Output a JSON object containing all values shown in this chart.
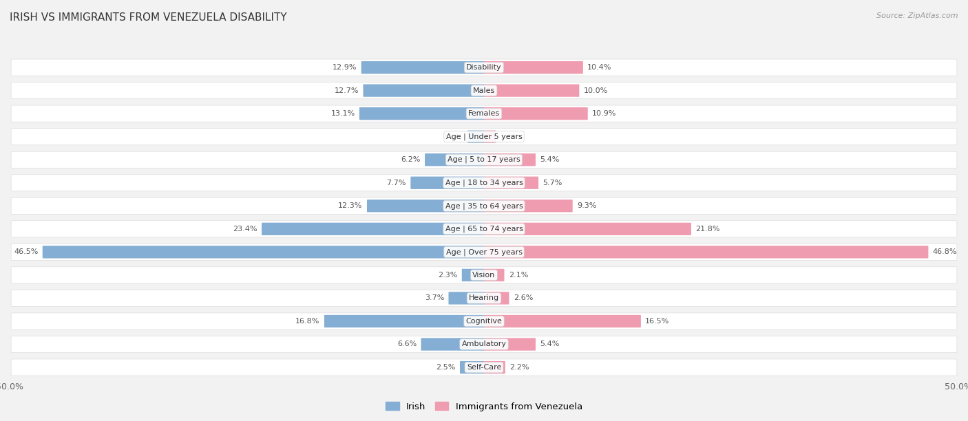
{
  "title": "IRISH VS IMMIGRANTS FROM VENEZUELA DISABILITY",
  "source": "Source: ZipAtlas.com",
  "categories": [
    "Disability",
    "Males",
    "Females",
    "Age | Under 5 years",
    "Age | 5 to 17 years",
    "Age | 18 to 34 years",
    "Age | 35 to 64 years",
    "Age | 65 to 74 years",
    "Age | Over 75 years",
    "Vision",
    "Hearing",
    "Cognitive",
    "Ambulatory",
    "Self-Care"
  ],
  "irish": [
    12.9,
    12.7,
    13.1,
    1.7,
    6.2,
    7.7,
    12.3,
    23.4,
    46.5,
    2.3,
    3.7,
    16.8,
    6.6,
    2.5
  ],
  "venezuela": [
    10.4,
    10.0,
    10.9,
    1.2,
    5.4,
    5.7,
    9.3,
    21.8,
    46.8,
    2.1,
    2.6,
    16.5,
    5.4,
    2.2
  ],
  "irish_color": "#85aed4",
  "venezuela_color": "#f09cb0",
  "max_val": 50.0,
  "bg_color": "#f2f2f2",
  "row_bg_color": "#ffffff",
  "row_border_color": "#dddddd",
  "label_color": "#555555",
  "title_color": "#333333",
  "value_label_color": "#555555"
}
